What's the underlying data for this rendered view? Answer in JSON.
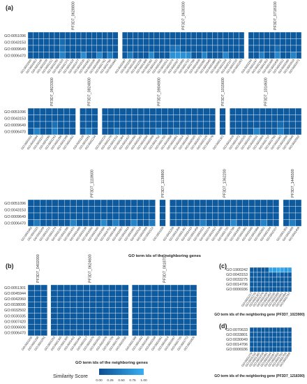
{
  "colors": {
    "low": "#0d4f93",
    "high": "#38aef2",
    "cell_default": "#0e5a9e",
    "grid_line": "#ffffff",
    "text": "#333333"
  },
  "chart_data": [
    {
      "panel": "(a)",
      "type": "heatmap",
      "xlabel": "GO term ids of the neighboring genes",
      "rows": [
        {
          "ylabels": [
            "GO:0051096",
            "GO:0043153",
            "GO:0009649",
            "GO:0006470"
          ],
          "blocks": [
            {
              "gene": "PF3D7_0628800",
              "cols": 17,
              "bright": [
                [
                  3,
                  6,
                  0.55
                ],
                [
                  3,
                  10,
                  0.65
                ],
                [
                  3,
                  13,
                  0.6
                ],
                [
                  3,
                  15,
                  0.5
                ],
                [
                  1,
                  6,
                  0.3
                ],
                [
                  2,
                  6,
                  0.35
                ]
              ]
            },
            {
              "gene": "PF3D7_0630300",
              "cols": 23,
              "bright": [
                [
                  3,
                  1,
                  0.45
                ],
                [
                  3,
                  5,
                  0.6
                ],
                [
                  3,
                  9,
                  0.7
                ],
                [
                  3,
                  10,
                  0.75
                ],
                [
                  3,
                  11,
                  0.7
                ],
                [
                  3,
                  12,
                  0.65
                ],
                [
                  3,
                  15,
                  0.55
                ],
                [
                  3,
                  19,
                  0.6
                ],
                [
                  2,
                  9,
                  0.35
                ],
                [
                  2,
                  10,
                  0.4
                ]
              ]
            },
            {
              "gene": "PF3D7_0718100",
              "cols": 10,
              "bright": [
                [
                  3,
                  2,
                  0.5
                ],
                [
                  3,
                  5,
                  0.6
                ],
                [
                  3,
                  8,
                  0.55
                ],
                [
                  2,
                  5,
                  0.3
                ]
              ]
            }
          ]
        },
        {
          "ylabels": [
            "GO:0051096",
            "GO:0043153",
            "GO:0009649",
            "GO:0006470"
          ],
          "blocks": [
            {
              "gene": "PF3D7_0823300",
              "cols": 8,
              "bright": [
                [
                  3,
                  1,
                  0.55
                ],
                [
                  3,
                  4,
                  0.5
                ],
                [
                  2,
                  4,
                  0.35
                ]
              ]
            },
            {
              "gene": "PF3D7_0824800",
              "cols": 3,
              "bright": [
                [
                  3,
                  1,
                  0.45
                ]
              ]
            },
            {
              "gene": "PF3D7_0904900",
              "cols": 19,
              "bright": [
                [
                  3,
                  2,
                  0.4
                ],
                [
                  3,
                  9,
                  0.45
                ],
                [
                  3,
                  12,
                  0.35
                ]
              ]
            },
            {
              "gene": "PF3D7_1015600",
              "cols": 1,
              "bright": []
            },
            {
              "gene": "PF3D7_1014600",
              "cols": 12,
              "bright": [
                [
                  3,
                  4,
                  0.55
                ],
                [
                  3,
                  8,
                  0.5
                ],
                [
                  2,
                  8,
                  0.3
                ]
              ]
            }
          ]
        },
        {
          "ylabels": [
            "GO:0051096",
            "GO:0043153",
            "GO:0009649",
            "GO:0006470"
          ],
          "blocks": [
            {
              "gene": "PF3D7_1118600",
              "cols": 21,
              "bright": [
                [
                  3,
                  1,
                  0.45
                ],
                [
                  3,
                  7,
                  0.55
                ],
                [
                  3,
                  12,
                  0.6
                ],
                [
                  3,
                  14,
                  0.5
                ],
                [
                  3,
                  17,
                  0.55
                ],
                [
                  3,
                  20,
                  0.45
                ]
              ]
            },
            {
              "gene": "PF3D7_1138800",
              "cols": 1,
              "bright": []
            },
            {
              "gene": "PF3D7_1362200",
              "cols": 18,
              "bright": [
                [
                  3,
                  5,
                  0.5
                ],
                [
                  3,
                  10,
                  0.6
                ],
                [
                  3,
                  15,
                  0.55
                ]
              ]
            },
            {
              "gene": "PF3D7_1446500",
              "cols": 3,
              "bright": [
                [
                  3,
                  1,
                  0.5
                ]
              ]
            }
          ]
        }
      ]
    },
    {
      "panel": "(b)",
      "type": "heatmap",
      "xlabel": "GO term ids of the neighboring genes",
      "ylabels": [
        "GO:0051301",
        "GO:0045944",
        "GO:0042060",
        "GO:0038095",
        "GO:0032502",
        "GO:0030335",
        "GO:0007420",
        "GO:0006606",
        "GO:0006470"
      ],
      "blocks": [
        {
          "gene": "PF3D7_0402000",
          "cols": 3,
          "bright": []
        },
        {
          "gene": "PF3D7_0624600",
          "cols": 12,
          "bright": []
        },
        {
          "gene": "PF3D7_0818700",
          "cols": 10,
          "bright": []
        }
      ]
    },
    {
      "panel": "(c)",
      "type": "heatmap",
      "xlabel": "GO term ids of the neighboring gene (PF3D7_1023900)",
      "ylabels": [
        "GO:1900242",
        "GO:0043153",
        "GO:0033275",
        "GO:0014706",
        "GO:0006936"
      ],
      "blocks": [
        {
          "gene": "",
          "cols": 11,
          "bright": [
            [
              0,
              5,
              0.9
            ],
            [
              0,
              6,
              0.85
            ],
            [
              0,
              7,
              0.95
            ],
            [
              0,
              8,
              0.9
            ],
            [
              0,
              9,
              0.8
            ],
            [
              0,
              10,
              0.85
            ],
            [
              1,
              7,
              0.3
            ]
          ]
        }
      ]
    },
    {
      "panel": "(d)",
      "type": "heatmap",
      "xlabel": "GO term ids of the neighboring gene (PF3D7_1218300)",
      "ylabels": [
        "GO:0070633",
        "GO:0033801",
        "GO:0030049",
        "GO:0014706",
        "GO:0006936"
      ],
      "blocks": [
        {
          "gene": "",
          "cols": 11,
          "bright": []
        }
      ]
    }
  ],
  "legend": {
    "title": "Similarity Score",
    "ticks": [
      "0.00",
      "0.25",
      "0.50",
      "0.75",
      "1.00"
    ]
  }
}
